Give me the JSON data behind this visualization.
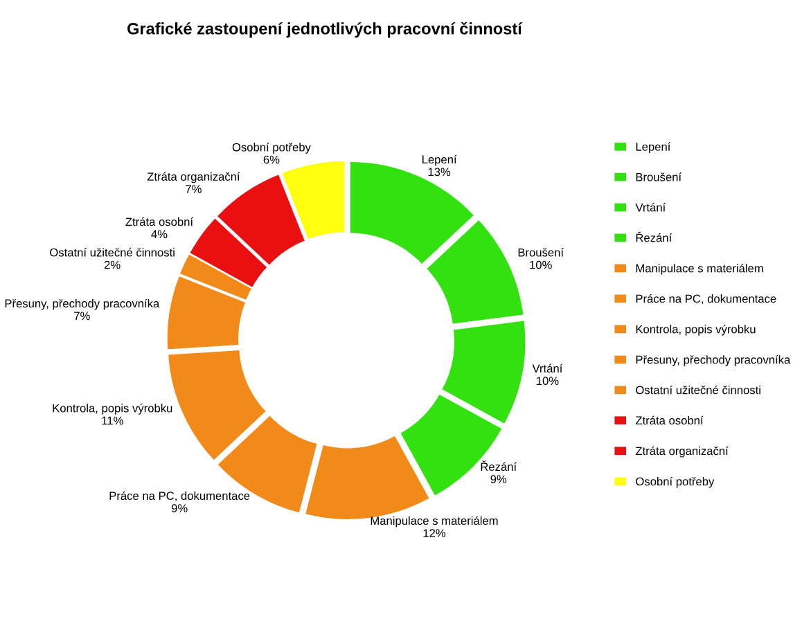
{
  "chart_data": {
    "type": "donut",
    "title": "Grafické zastoupení jednotlivých pracovní činností",
    "categories": [
      "Lepení",
      "Broušení",
      "Vrtání",
      "Řezání",
      "Manipulace s materiálem",
      "Práce na PC, dokumentace",
      "Kontrola, popis výrobku",
      "Přesuny, přechody pracovníka",
      "Ostatní užitečné činnosti",
      "Ztráta osobní",
      "Ztráta organizační",
      "Osobní potřeby"
    ],
    "values": [
      13,
      10,
      10,
      9,
      12,
      9,
      11,
      7,
      2,
      4,
      7,
      6
    ],
    "colors": [
      "#33e010",
      "#33e010",
      "#33e010",
      "#33e010",
      "#f28a1a",
      "#f28a1a",
      "#f28a1a",
      "#f28a1a",
      "#f28a1a",
      "#e81010",
      "#e81010",
      "#ffff10"
    ],
    "value_labels": [
      "13%",
      "10%",
      "10%",
      "9%",
      "12%",
      "9%",
      "11%",
      "7%",
      "2%",
      "4%",
      "7%",
      "6%"
    ],
    "legend": "right"
  }
}
